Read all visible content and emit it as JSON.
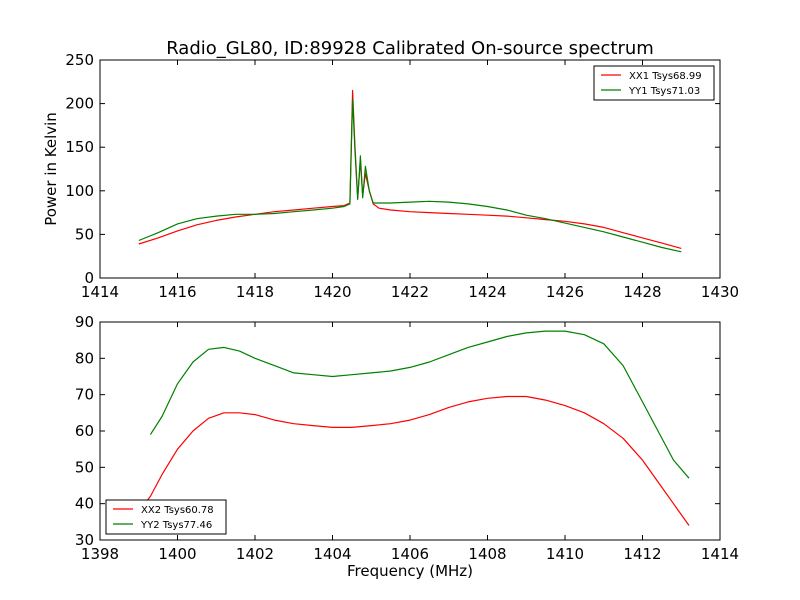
{
  "chart_data": [
    {
      "type": "line",
      "title": "Radio_GL80, ID:89928 Calibrated On-source spectrum",
      "xlabel": "",
      "ylabel": "Power in Kelvin",
      "xlim": [
        1414,
        1430
      ],
      "ylim": [
        0,
        250
      ],
      "xticks": [
        1414,
        1416,
        1418,
        1420,
        1422,
        1424,
        1426,
        1428,
        1430
      ],
      "yticks": [
        0,
        50,
        100,
        150,
        200,
        250
      ],
      "grid": false,
      "legend_position": "top-right",
      "series": [
        {
          "name": "XX1 Tsys68.99",
          "color": "#ff0000",
          "x": [
            1415.0,
            1415.5,
            1416.0,
            1416.5,
            1417.0,
            1417.5,
            1418.0,
            1418.5,
            1419.0,
            1419.5,
            1420.0,
            1420.3,
            1420.45,
            1420.52,
            1420.58,
            1420.65,
            1420.72,
            1420.78,
            1420.85,
            1420.95,
            1421.05,
            1421.2,
            1421.5,
            1422.0,
            1422.5,
            1423.0,
            1423.5,
            1424.0,
            1424.5,
            1425.0,
            1425.5,
            1426.0,
            1426.5,
            1427.0,
            1427.5,
            1428.0,
            1428.5,
            1429.0
          ],
          "values": [
            39,
            46,
            54,
            61,
            66,
            70,
            73,
            76,
            78,
            80,
            82,
            83,
            86,
            215,
            150,
            92,
            135,
            95,
            120,
            100,
            85,
            80,
            78,
            76,
            75,
            74,
            73,
            72,
            71,
            69,
            67,
            65,
            62,
            58,
            52,
            46,
            40,
            34
          ]
        },
        {
          "name": "YY1 Tsys71.03",
          "color": "#008000",
          "x": [
            1415.0,
            1415.5,
            1416.0,
            1416.5,
            1417.0,
            1417.5,
            1418.0,
            1418.5,
            1419.0,
            1419.5,
            1420.0,
            1420.3,
            1420.45,
            1420.52,
            1420.58,
            1420.65,
            1420.72,
            1420.78,
            1420.85,
            1420.95,
            1421.05,
            1421.2,
            1421.5,
            1422.0,
            1422.5,
            1423.0,
            1423.5,
            1424.0,
            1424.5,
            1425.0,
            1425.5,
            1426.0,
            1426.5,
            1427.0,
            1427.5,
            1428.0,
            1428.5,
            1429.0
          ],
          "values": [
            43,
            52,
            62,
            68,
            71,
            73,
            73,
            74,
            76,
            78,
            80,
            82,
            85,
            205,
            145,
            90,
            140,
            92,
            128,
            100,
            86,
            86,
            86,
            87,
            88,
            87,
            85,
            82,
            78,
            72,
            68,
            63,
            58,
            53,
            47,
            41,
            35,
            30
          ]
        }
      ]
    },
    {
      "type": "line",
      "title": "",
      "xlabel": "Frequency (MHz)",
      "ylabel": "",
      "xlim": [
        1398,
        1414
      ],
      "ylim": [
        30,
        90
      ],
      "xticks": [
        1398,
        1400,
        1402,
        1404,
        1406,
        1408,
        1410,
        1412,
        1414
      ],
      "yticks": [
        30,
        40,
        50,
        60,
        70,
        80,
        90
      ],
      "grid": false,
      "legend_position": "bottom-left",
      "series": [
        {
          "name": "XX2 Tsys60.78",
          "color": "#ff0000",
          "x": [
            1399.0,
            1399.3,
            1399.6,
            1400.0,
            1400.4,
            1400.8,
            1401.2,
            1401.6,
            1402.0,
            1402.5,
            1403.0,
            1403.5,
            1404.0,
            1404.5,
            1405.0,
            1405.5,
            1406.0,
            1406.5,
            1407.0,
            1407.5,
            1408.0,
            1408.5,
            1409.0,
            1409.5,
            1410.0,
            1410.5,
            1411.0,
            1411.5,
            1412.0,
            1412.4,
            1412.8,
            1413.2
          ],
          "values": [
            38,
            42,
            48,
            55,
            60,
            63.5,
            65,
            65,
            64.5,
            63,
            62,
            61.5,
            61,
            61,
            61.5,
            62,
            63,
            64.5,
            66.5,
            68,
            69,
            69.5,
            69.5,
            68.5,
            67,
            65,
            62,
            58,
            52,
            46,
            40,
            34
          ]
        },
        {
          "name": "YY2 Tsys77.46",
          "color": "#008000",
          "x": [
            1399.3,
            1399.6,
            1400.0,
            1400.4,
            1400.8,
            1401.2,
            1401.6,
            1402.0,
            1402.5,
            1403.0,
            1403.5,
            1404.0,
            1404.5,
            1405.0,
            1405.5,
            1406.0,
            1406.5,
            1407.0,
            1407.5,
            1408.0,
            1408.5,
            1409.0,
            1409.5,
            1410.0,
            1410.5,
            1411.0,
            1411.5,
            1412.0,
            1412.4,
            1412.8,
            1413.2
          ],
          "values": [
            59,
            64,
            73,
            79,
            82.5,
            83,
            82,
            80,
            78,
            76,
            75.5,
            75,
            75.5,
            76,
            76.5,
            77.5,
            79,
            81,
            83,
            84.5,
            86,
            87,
            87.5,
            87.5,
            86.5,
            84,
            78,
            68,
            60,
            52,
            47
          ]
        }
      ]
    }
  ]
}
